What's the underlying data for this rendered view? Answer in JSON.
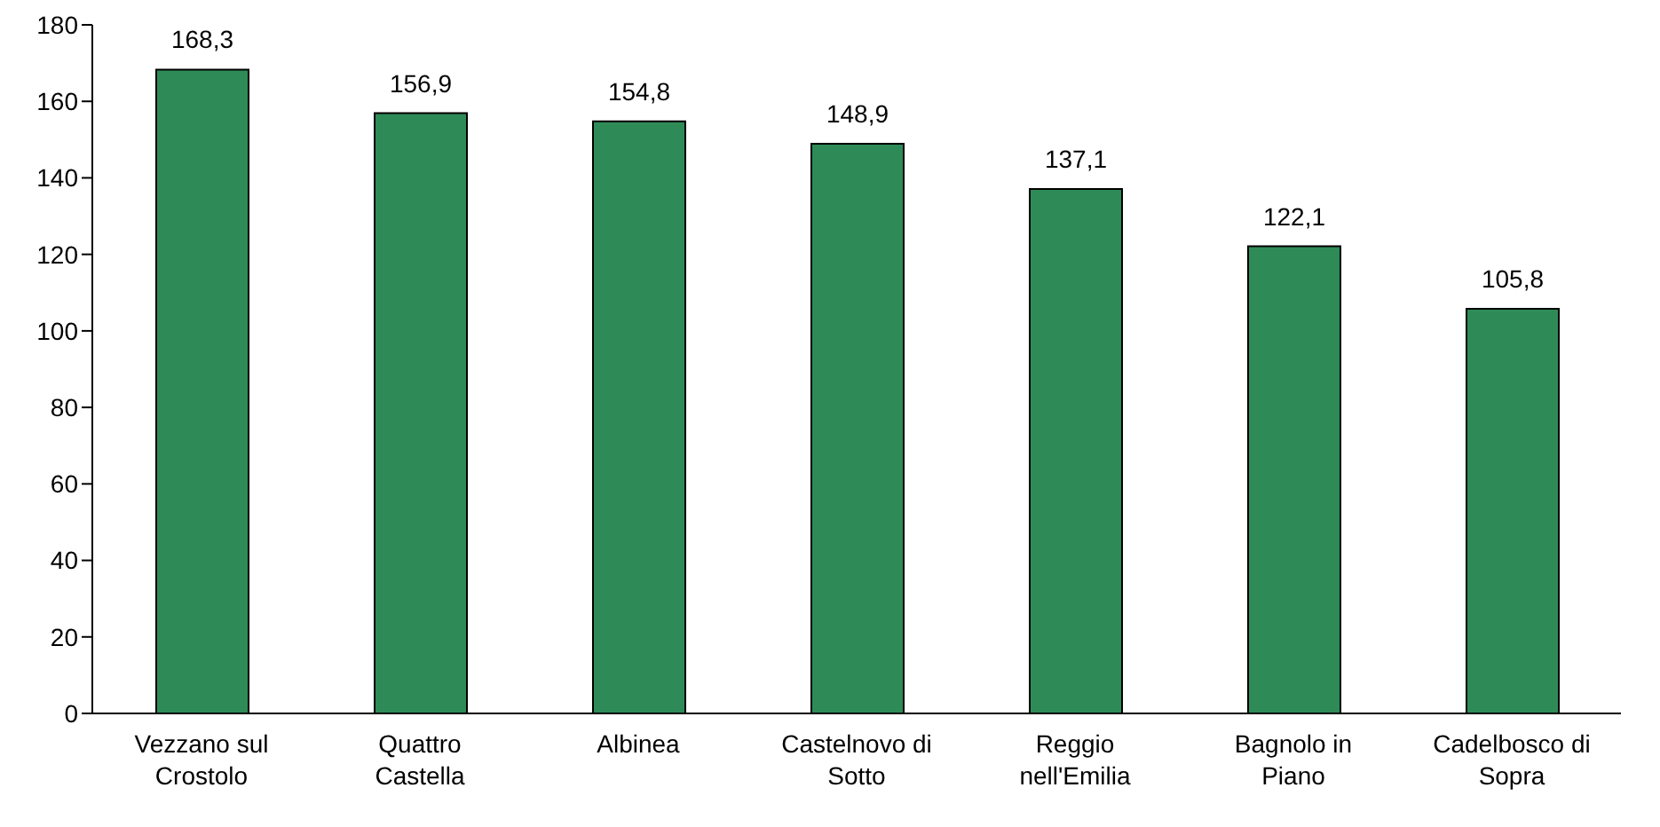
{
  "chart_data": {
    "type": "bar",
    "categories": [
      "Vezzano sul Crostolo",
      "Quattro Castella",
      "Albinea",
      "Castelnovo di Sotto",
      "Reggio nell'Emilia",
      "Bagnolo in Piano",
      "Cadelbosco di Sopra"
    ],
    "values": [
      168.3,
      156.9,
      154.8,
      148.9,
      137.1,
      122.1,
      105.8
    ],
    "value_labels": [
      "168,3",
      "156,9",
      "154,8",
      "148,9",
      "137,1",
      "122,1",
      "105,8"
    ],
    "color": "#2e8b57",
    "ylim": [
      0,
      180
    ],
    "yticks": [
      0,
      20,
      40,
      60,
      80,
      100,
      120,
      140,
      160,
      180
    ],
    "grid": false,
    "legend": false
  }
}
